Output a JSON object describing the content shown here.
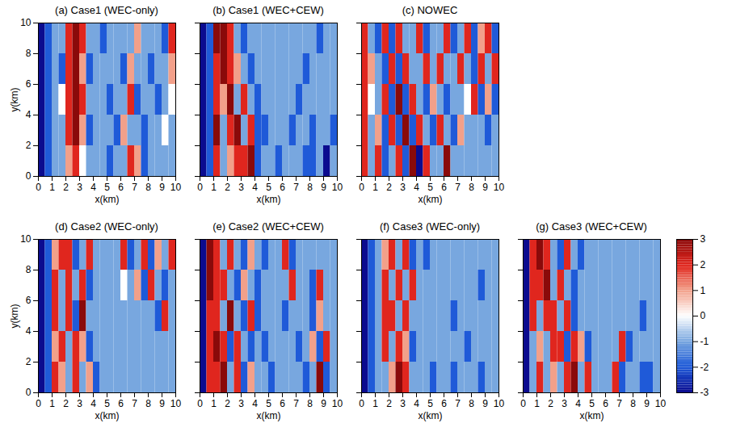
{
  "chart_data": [
    {
      "type": "heatmap",
      "title": "(a) Case1 (WEC-only)",
      "xlabel": "x(km)",
      "ylabel": "y(km)",
      "xlim": [
        0,
        10
      ],
      "ylim": [
        0,
        10
      ],
      "xticks": [
        0,
        1,
        2,
        3,
        4,
        5,
        6,
        7,
        8,
        9,
        10
      ],
      "yticks": [
        0,
        2,
        4,
        6,
        8,
        10
      ],
      "x_edges": [
        0,
        0.5,
        1,
        1.5,
        2,
        2.5,
        3,
        3.5,
        4,
        4.5,
        5,
        5.5,
        6,
        6.5,
        7,
        7.5,
        8,
        8.5,
        9,
        9.5,
        10
      ],
      "y_edges": [
        0,
        2,
        4,
        6,
        8,
        10
      ],
      "values": [
        [
          -3,
          -2,
          -1,
          -1,
          1,
          2,
          0,
          -1,
          -1,
          -1,
          -2,
          -1,
          -1,
          2,
          1,
          -2,
          -1,
          -1,
          -1,
          -1
        ],
        [
          -3,
          -2,
          -1,
          -1,
          2,
          3,
          1,
          -2,
          -1,
          -1,
          -1,
          -2,
          1,
          -1,
          -1,
          -2,
          -1,
          -1,
          0,
          -1
        ],
        [
          -3,
          -2,
          -1,
          0,
          2,
          3,
          2,
          -1,
          -1,
          -1,
          -2,
          -1,
          -1,
          2,
          -2,
          -1,
          -1,
          -2,
          -1,
          0
        ],
        [
          -3,
          -2,
          -1,
          -2,
          2,
          3,
          1,
          -2,
          -1,
          -1,
          -1,
          -1,
          -2,
          1,
          -1,
          -1,
          -2,
          -1,
          -1,
          1
        ],
        [
          -3,
          -2,
          -1,
          -1,
          2,
          3,
          2,
          -1,
          -1,
          -2,
          -1,
          -1,
          -1,
          -1,
          1,
          -1,
          -1,
          -1,
          -2,
          2
        ]
      ]
    },
    {
      "type": "heatmap",
      "title": "(b) Case1 (WEC+CEW)",
      "xlabel": "x(km)",
      "tick_labels": "x",
      "xlim": [
        0,
        10
      ],
      "ylim": [
        0,
        10
      ],
      "xticks": [
        0,
        1,
        2,
        3,
        4,
        5,
        6,
        7,
        8,
        9,
        10
      ],
      "yticks": [
        0,
        2,
        4,
        6,
        8,
        10
      ],
      "x_edges": [
        0,
        0.5,
        1,
        1.5,
        2,
        2.5,
        3,
        3.5,
        4,
        4.5,
        5,
        5.5,
        6,
        6.5,
        7,
        7.5,
        8,
        8.5,
        9,
        9.5,
        10
      ],
      "y_edges": [
        0,
        2,
        4,
        6,
        8,
        10
      ],
      "values": [
        [
          -3,
          -2,
          2,
          -1,
          1,
          2,
          2,
          3,
          -2,
          -1,
          -1,
          -2,
          -1,
          -1,
          -1,
          -2,
          -2,
          -1,
          -3,
          -1
        ],
        [
          -3,
          -2,
          3,
          -1,
          2,
          3,
          -1,
          2,
          -2,
          -2,
          -1,
          -1,
          -1,
          -2,
          -1,
          -1,
          -2,
          -1,
          -1,
          -2
        ],
        [
          -3,
          -2,
          2,
          1,
          3,
          -1,
          2,
          -1,
          -2,
          -1,
          -1,
          -1,
          -1,
          -1,
          -2,
          -1,
          -1,
          -1,
          -1,
          -1
        ],
        [
          -3,
          -2,
          2,
          3,
          2,
          1,
          -1,
          -2,
          -1,
          -1,
          -1,
          -1,
          -1,
          -1,
          -1,
          -2,
          -1,
          -1,
          -1,
          -1
        ],
        [
          -3,
          -2,
          3,
          3,
          2,
          -1,
          -2,
          -1,
          -1,
          -1,
          -1,
          -1,
          -1,
          -1,
          -1,
          -1,
          -1,
          -2,
          -1,
          -1
        ]
      ]
    },
    {
      "type": "heatmap",
      "title": "(c) NOWEC",
      "xlabel": "x(km)",
      "tick_labels": "x",
      "xlim": [
        0,
        10
      ],
      "ylim": [
        0,
        10
      ],
      "xticks": [
        0,
        1,
        2,
        3,
        4,
        5,
        6,
        7,
        8,
        9,
        10
      ],
      "yticks": [
        0,
        2,
        4,
        6,
        8,
        10
      ],
      "x_edges": [
        0,
        0.5,
        1,
        1.5,
        2,
        2.5,
        3,
        3.5,
        4,
        4.5,
        5,
        5.5,
        6,
        6.5,
        7,
        7.5,
        8,
        8.5,
        9,
        9.5,
        10
      ],
      "y_edges": [
        0,
        2,
        4,
        6,
        8,
        10
      ],
      "values": [
        [
          2,
          -1,
          2,
          -2,
          -1,
          2,
          -2,
          3,
          -3,
          2,
          -1,
          -1,
          3,
          -1,
          -1,
          -1,
          -1,
          -1,
          -1,
          -1
        ],
        [
          2,
          -1,
          1,
          -2,
          2,
          -2,
          3,
          -2,
          2,
          -1,
          -2,
          2,
          -1,
          -2,
          1,
          -1,
          -1,
          -1,
          -2,
          -1
        ],
        [
          2,
          0,
          -1,
          2,
          -2,
          3,
          -2,
          2,
          -1,
          -2,
          1,
          -1,
          -2,
          -1,
          -1,
          0,
          2,
          -2,
          1,
          -2
        ],
        [
          2,
          1,
          -1,
          -2,
          2,
          -2,
          2,
          -1,
          -1,
          2,
          -1,
          2,
          -1,
          -1,
          2,
          -1,
          -2,
          2,
          -1,
          2
        ],
        [
          2,
          -1,
          -2,
          2,
          -2,
          2,
          -1,
          -1,
          2,
          -2,
          -1,
          -1,
          2,
          -2,
          -1,
          2,
          -2,
          1,
          2,
          -2
        ]
      ]
    },
    {
      "type": "heatmap",
      "title": "(d) Case2 (WEC-only)",
      "xlabel": "x(km)",
      "ylabel": "y(km)",
      "xlim": [
        0,
        10
      ],
      "ylim": [
        0,
        10
      ],
      "xticks": [
        0,
        1,
        2,
        3,
        4,
        5,
        6,
        7,
        8,
        9,
        10
      ],
      "yticks": [
        0,
        2,
        4,
        6,
        8,
        10
      ],
      "x_edges": [
        0,
        0.5,
        1,
        1.5,
        2,
        2.5,
        3,
        3.5,
        4,
        4.5,
        5,
        5.5,
        6,
        6.5,
        7,
        7.5,
        8,
        8.5,
        9,
        9.5,
        10
      ],
      "y_edges": [
        0,
        2,
        4,
        6,
        8,
        10
      ],
      "values": [
        [
          -3,
          -2,
          2,
          1,
          -1,
          2,
          -1,
          1,
          -2,
          -1,
          -1,
          -1,
          -1,
          -1,
          -1,
          -1,
          -1,
          -1,
          -1,
          -1
        ],
        [
          -3,
          -2,
          1,
          2,
          -1,
          2,
          1,
          -2,
          -1,
          -1,
          -1,
          -1,
          -1,
          -1,
          -1,
          -1,
          -1,
          -1,
          -1,
          -1
        ],
        [
          -3,
          -2,
          2,
          -1,
          2,
          -2,
          3,
          -1,
          -1,
          -1,
          -1,
          -1,
          -1,
          -1,
          -1,
          -1,
          -1,
          -2,
          2,
          -1
        ],
        [
          -3,
          -2,
          2,
          -1,
          2,
          -1,
          2,
          -2,
          -1,
          -1,
          -1,
          -1,
          0,
          -1,
          1,
          -2,
          2,
          -1,
          -2,
          -1
        ],
        [
          -3,
          -2,
          1,
          2,
          2,
          -2,
          -1,
          2,
          -1,
          -1,
          -1,
          -1,
          2,
          -2,
          -1,
          2,
          -2,
          1,
          -1,
          2
        ]
      ]
    },
    {
      "type": "heatmap",
      "title": "(e) Case2 (WEC+CEW)",
      "xlabel": "x(km)",
      "tick_labels": "x",
      "xlim": [
        0,
        10
      ],
      "ylim": [
        0,
        10
      ],
      "xticks": [
        0,
        1,
        2,
        3,
        4,
        5,
        6,
        7,
        8,
        9,
        10
      ],
      "yticks": [
        0,
        2,
        4,
        6,
        8,
        10
      ],
      "x_edges": [
        0,
        0.5,
        1,
        1.5,
        2,
        2.5,
        3,
        3.5,
        4,
        4.5,
        5,
        5.5,
        6,
        6.5,
        7,
        7.5,
        8,
        8.5,
        9,
        9.5,
        10
      ],
      "y_edges": [
        0,
        2,
        4,
        6,
        8,
        10
      ],
      "values": [
        [
          -3,
          2,
          2,
          3,
          -1,
          2,
          -2,
          1,
          -1,
          -1,
          -2,
          -1,
          -1,
          -1,
          -1,
          -2,
          -1,
          3,
          -2,
          -1
        ],
        [
          -3,
          2,
          3,
          2,
          -2,
          2,
          -1,
          -2,
          -1,
          -2,
          -1,
          -1,
          -1,
          -1,
          -2,
          -1,
          1,
          -2,
          2,
          -1
        ],
        [
          -3,
          2,
          2,
          -1,
          3,
          -1,
          -2,
          2,
          -2,
          -1,
          -1,
          -1,
          -2,
          -1,
          -1,
          -1,
          -2,
          1,
          -1,
          -1
        ],
        [
          -3,
          3,
          2,
          2,
          -1,
          -2,
          1,
          -1,
          -2,
          -1,
          -1,
          -1,
          -1,
          2,
          -1,
          -1,
          -2,
          2,
          -1,
          -1
        ],
        [
          -3,
          3,
          2,
          -1,
          2,
          -1,
          -2,
          1,
          -1,
          -2,
          -1,
          -1,
          2,
          -2,
          -1,
          -1,
          -1,
          -1,
          -1,
          -1
        ]
      ]
    },
    {
      "type": "heatmap",
      "title": "(f) Case3 (WEC-only)",
      "xlabel": "x(km)",
      "tick_labels": "x",
      "xlim": [
        0,
        10
      ],
      "ylim": [
        0,
        10
      ],
      "xticks": [
        0,
        1,
        2,
        3,
        4,
        5,
        6,
        7,
        8,
        9,
        10
      ],
      "yticks": [
        0,
        2,
        4,
        6,
        8,
        10
      ],
      "x_edges": [
        0,
        0.5,
        1,
        1.5,
        2,
        2.5,
        3,
        3.5,
        4,
        4.5,
        5,
        5.5,
        6,
        6.5,
        7,
        7.5,
        8,
        8.5,
        9,
        9.5,
        10
      ],
      "y_edges": [
        0,
        2,
        4,
        6,
        8,
        10
      ],
      "values": [
        [
          -3,
          -2,
          -1,
          -1,
          1,
          3,
          2,
          -1,
          -1,
          -1,
          -2,
          -1,
          -1,
          -2,
          -1,
          -1,
          -1,
          -2,
          -1,
          -1
        ],
        [
          -3,
          -2,
          -1,
          2,
          -1,
          2,
          1,
          -2,
          -1,
          -1,
          -1,
          -1,
          -1,
          -1,
          -1,
          -2,
          -1,
          -1,
          -1,
          -1
        ],
        [
          -3,
          -2,
          -1,
          2,
          2,
          -1,
          2,
          -1,
          -1,
          -1,
          -1,
          -1,
          -1,
          -2,
          -1,
          -1,
          -1,
          -1,
          -1,
          -1
        ],
        [
          -3,
          -2,
          -1,
          2,
          -1,
          2,
          -1,
          2,
          -1,
          -1,
          -1,
          -1,
          -1,
          -1,
          -1,
          -1,
          -1,
          -2,
          -1,
          -1
        ],
        [
          -3,
          -2,
          -1,
          1,
          2,
          -1,
          2,
          -2,
          -1,
          -2,
          -1,
          -1,
          -1,
          -1,
          -1,
          -1,
          -1,
          -1,
          -1,
          -1
        ]
      ]
    },
    {
      "type": "heatmap",
      "title": "(g) Case3 (WEC+CEW)",
      "xlabel": "x(km)",
      "tick_labels": "x",
      "xlim": [
        0,
        10
      ],
      "ylim": [
        0,
        10
      ],
      "xticks": [
        0,
        1,
        2,
        3,
        4,
        5,
        6,
        7,
        8,
        9,
        10
      ],
      "yticks": [
        0,
        2,
        4,
        6,
        8,
        10
      ],
      "x_edges": [
        0,
        0.5,
        1,
        1.5,
        2,
        2.5,
        3,
        3.5,
        4,
        4.5,
        5,
        5.5,
        6,
        6.5,
        7,
        7.5,
        8,
        8.5,
        9,
        9.5,
        10
      ],
      "y_edges": [
        0,
        2,
        4,
        6,
        8,
        10
      ],
      "values": [
        [
          -3,
          -1,
          2,
          -1,
          1,
          -1,
          2,
          3,
          -1,
          2,
          -1,
          -1,
          -1,
          2,
          -2,
          -1,
          -1,
          -2,
          -2,
          -1
        ],
        [
          -3,
          -1,
          1,
          -1,
          2,
          2,
          -2,
          2,
          1,
          -2,
          -1,
          -1,
          -1,
          -1,
          2,
          -2,
          -1,
          -1,
          -1,
          -1
        ],
        [
          -3,
          2,
          -1,
          2,
          2,
          -1,
          2,
          -2,
          -1,
          -1,
          -1,
          -1,
          -1,
          -1,
          -1,
          -1,
          -1,
          -2,
          -1,
          -1
        ],
        [
          -3,
          2,
          2,
          3,
          -1,
          2,
          -1,
          -2,
          -1,
          -1,
          -1,
          -1,
          -1,
          -1,
          -1,
          -1,
          -1,
          -1,
          -1,
          -1
        ],
        [
          -3,
          2,
          3,
          2,
          -1,
          -2,
          2,
          -1,
          -2,
          -1,
          -1,
          -1,
          -1,
          -1,
          -1,
          -1,
          -1,
          -1,
          -1,
          -1
        ]
      ]
    },
    {
      "type": "colorbar",
      "range": [
        -3,
        3
      ],
      "ticks": [
        -3,
        -2,
        -1,
        0,
        1,
        2,
        3
      ]
    }
  ]
}
